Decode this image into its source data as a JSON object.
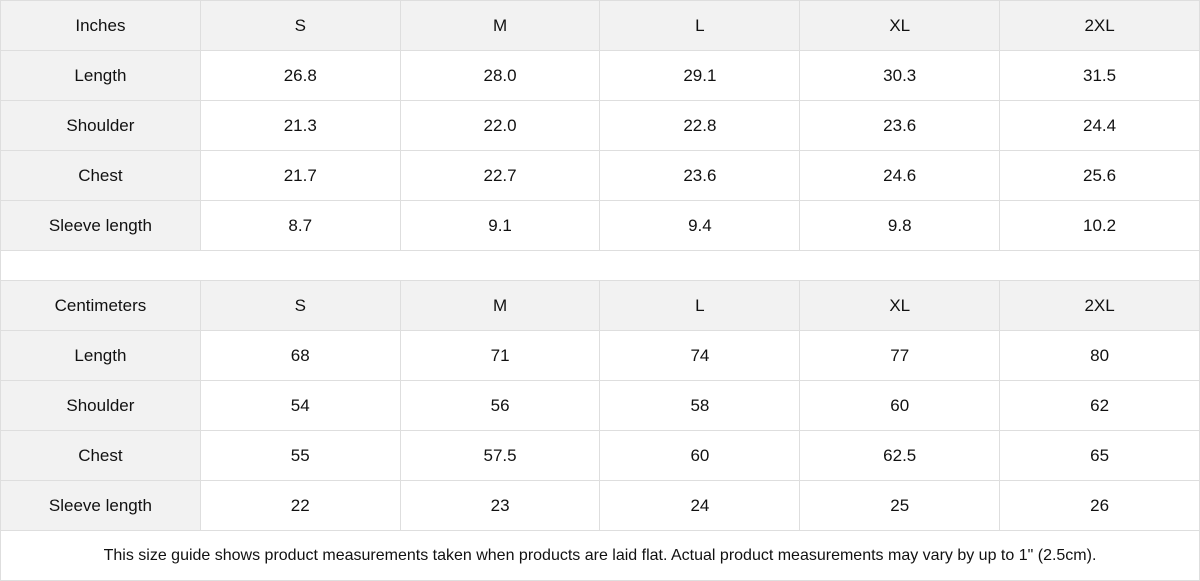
{
  "tables": [
    {
      "unit": "Inches",
      "sizes": [
        "S",
        "M",
        "L",
        "XL",
        "2XL"
      ],
      "rows": [
        {
          "label": "Length",
          "values": [
            "26.8",
            "28.0",
            "29.1",
            "30.3",
            "31.5"
          ]
        },
        {
          "label": "Shoulder",
          "values": [
            "21.3",
            "22.0",
            "22.8",
            "23.6",
            "24.4"
          ]
        },
        {
          "label": "Chest",
          "values": [
            "21.7",
            "22.7",
            "23.6",
            "24.6",
            "25.6"
          ]
        },
        {
          "label": "Sleeve length",
          "values": [
            "8.7",
            "9.1",
            "9.4",
            "9.8",
            "10.2"
          ]
        }
      ]
    },
    {
      "unit": "Centimeters",
      "sizes": [
        "S",
        "M",
        "L",
        "XL",
        "2XL"
      ],
      "rows": [
        {
          "label": "Length",
          "values": [
            "68",
            "71",
            "74",
            "77",
            "80"
          ]
        },
        {
          "label": "Shoulder",
          "values": [
            "54",
            "56",
            "58",
            "60",
            "62"
          ]
        },
        {
          "label": "Chest",
          "values": [
            "55",
            "57.5",
            "60",
            "62.5",
            "65"
          ]
        },
        {
          "label": "Sleeve length",
          "values": [
            "22",
            "23",
            "24",
            "25",
            "26"
          ]
        }
      ]
    }
  ],
  "note": "This size guide shows product measurements taken when products are laid flat.  Actual product measurements may vary by up to 1\" (2.5cm).",
  "colors": {
    "header_bg": "#f2f2f2",
    "border": "#dedede"
  }
}
